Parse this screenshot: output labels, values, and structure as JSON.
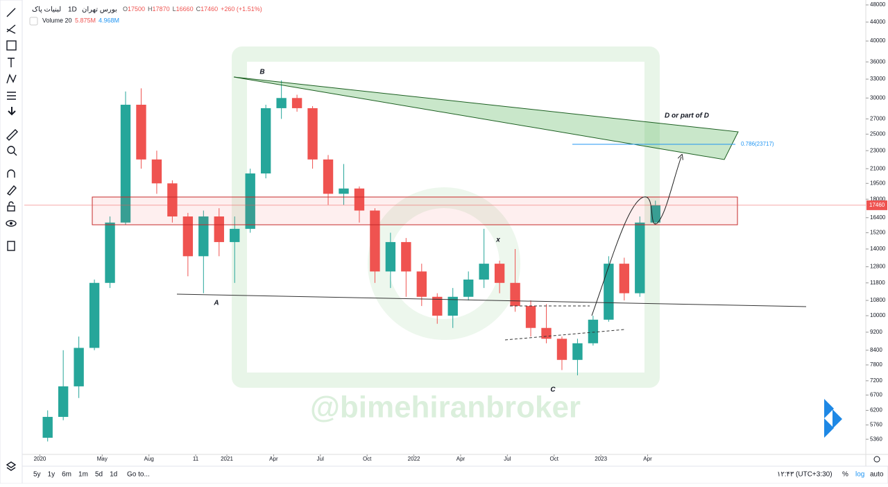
{
  "header": {
    "symbol": "لبنیات پاک",
    "exchange": "بورس تهران",
    "interval": "1D",
    "quote": [
      {
        "key": "O",
        "value": 17500
      },
      {
        "key": "H",
        "value": 17870
      },
      {
        "key": "L",
        "value": 16660
      },
      {
        "key": "C",
        "value": 17460
      }
    ],
    "change": "+260 (+1.51%)",
    "volume_name": "Volume 20",
    "volume_value": "5.875M",
    "volume_ma": "4.968M"
  },
  "chart_data": {
    "type": "candlestick",
    "log": true,
    "x": [
      "2020-01",
      "2020-02",
      "2020-03",
      "2020-04",
      "2020-05",
      "2020-06",
      "2020-07",
      "2020-08",
      "2020-09",
      "2020-10",
      "2020-11",
      "2020-12",
      "2021-01",
      "2021-02",
      "2021-03",
      "2021-04",
      "2021-05",
      "2021-06",
      "2021-07",
      "2021-08",
      "2021-09",
      "2021-10",
      "2021-11",
      "2021-12",
      "2022-01",
      "2022-02",
      "2022-03",
      "2022-04",
      "2022-05",
      "2022-06",
      "2022-07",
      "2022-08",
      "2022-09",
      "2022-10",
      "2022-11",
      "2022-12",
      "2023-01",
      "2023-02",
      "2023-03",
      "2023-04"
    ],
    "open": [
      5400,
      6000,
      7000,
      8500,
      11800,
      16000,
      29000,
      22000,
      19500,
      16500,
      13500,
      16500,
      14500,
      15500,
      20500,
      28500,
      30000,
      28500,
      22000,
      18500,
      19000,
      17000,
      12500,
      14500,
      12500,
      11000,
      10000,
      11000,
      12000,
      13000,
      11800,
      10500,
      9400,
      8900,
      8000,
      8700,
      9800,
      13000,
      11200,
      16000
    ],
    "high": [
      6200,
      8400,
      9000,
      12000,
      16500,
      31000,
      31500,
      23000,
      19800,
      16800,
      17000,
      17200,
      16500,
      21000,
      29000,
      32800,
      30500,
      28800,
      22500,
      21500,
      19200,
      17200,
      15200,
      14800,
      13000,
      11200,
      11500,
      12500,
      15500,
      13200,
      14000,
      10800,
      10600,
      9000,
      8900,
      10000,
      13500,
      13400,
      16500,
      17870
    ],
    "low": [
      5300,
      5900,
      6600,
      8400,
      11500,
      15800,
      21000,
      18500,
      16000,
      12200,
      11200,
      13500,
      11800,
      15200,
      20000,
      27000,
      28000,
      21000,
      17500,
      17500,
      16000,
      11800,
      11500,
      11000,
      10500,
      9600,
      9400,
      10800,
      11500,
      11200,
      10200,
      9000,
      8700,
      7600,
      7400,
      8600,
      9700,
      10800,
      11000,
      15900
    ],
    "close": [
      6000,
      7000,
      8500,
      11800,
      16000,
      29000,
      22000,
      19500,
      16500,
      13500,
      16500,
      14500,
      15500,
      20500,
      28500,
      30000,
      28500,
      22000,
      18500,
      19000,
      17000,
      12500,
      14500,
      12500,
      11000,
      10000,
      11000,
      12000,
      13000,
      11800,
      10500,
      9400,
      8900,
      8000,
      8700,
      9800,
      13000,
      11200,
      16000,
      17460
    ],
    "up_color": "#26a69a",
    "down_color": "#ef5350",
    "xlim": [
      "2019-12",
      "2024-06"
    ],
    "xticks": [
      {
        "value": "2020-01",
        "label": "2020"
      },
      {
        "value": "2020-05",
        "label": "May"
      },
      {
        "value": "2020-08",
        "label": "Aug"
      },
      {
        "value": "2020-11",
        "label": "11"
      },
      {
        "value": "2021-01",
        "label": "2021"
      },
      {
        "value": "2021-04",
        "label": "Apr"
      },
      {
        "value": "2021-07",
        "label": "Jul"
      },
      {
        "value": "2021-10",
        "label": "Oct"
      },
      {
        "value": "2022-01",
        "label": "2022"
      },
      {
        "value": "2022-04",
        "label": "Apr"
      },
      {
        "value": "2022-07",
        "label": "Jul"
      },
      {
        "value": "2022-10",
        "label": "Oct"
      },
      {
        "value": "2023-01",
        "label": "2023"
      },
      {
        "value": "2023-04",
        "label": "Apr"
      }
    ],
    "ylim": [
      4845,
      49200
    ],
    "yticks": [
      48000,
      44000,
      40000,
      36000,
      33000,
      30000,
      27000,
      25000,
      23000,
      21000,
      19500,
      18000,
      16400,
      15200,
      14000,
      12800,
      11800,
      10800,
      10000,
      9200,
      8400,
      7800,
      7200,
      6700,
      6200,
      5760,
      5360
    ],
    "annotations": {
      "b": "B",
      "a": "A",
      "c": "C",
      "x": "x",
      "d": "D or part of D",
      "fib": "0.786(23717)"
    },
    "watermark": "@bimehiranbroker"
  },
  "bottom_bar": {
    "ranges": [
      "5y",
      "1y",
      "6m",
      "1m",
      "5d",
      "1d"
    ],
    "goto": "Go to...",
    "clock": "۱۲:۴۳ (UTC+3:30)",
    "percent": "%",
    "log": "log",
    "auto": "auto"
  }
}
